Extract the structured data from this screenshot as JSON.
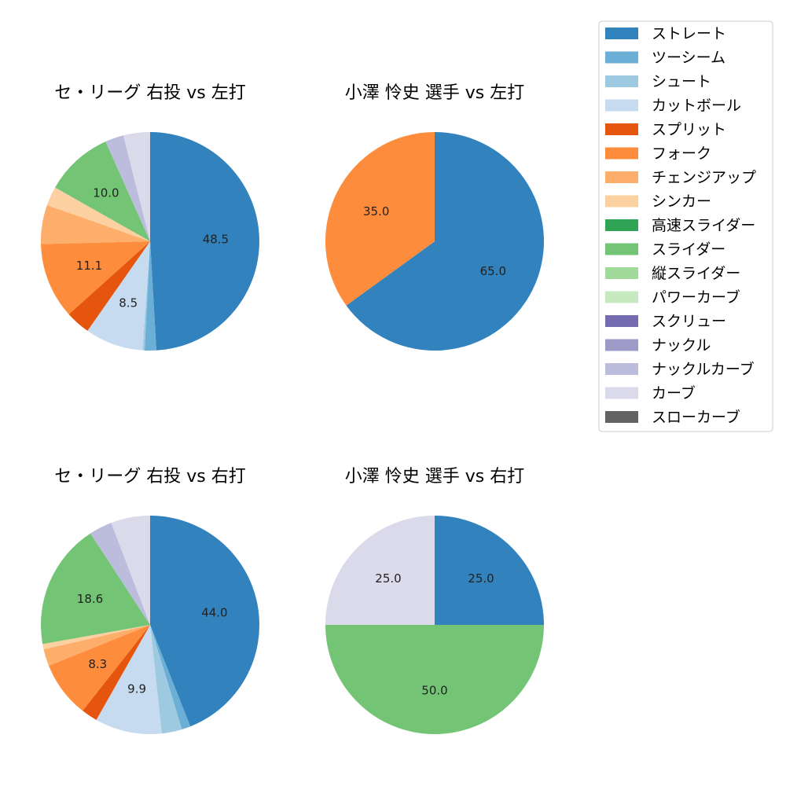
{
  "legend": {
    "items": [
      {
        "label": "ストレート",
        "color": "#3182bd"
      },
      {
        "label": "ツーシーム",
        "color": "#6baed6"
      },
      {
        "label": "シュート",
        "color": "#9ecae1"
      },
      {
        "label": "カットボール",
        "color": "#c6dbef"
      },
      {
        "label": "スプリット",
        "color": "#e6550d"
      },
      {
        "label": "フォーク",
        "color": "#fd8d3c"
      },
      {
        "label": "チェンジアップ",
        "color": "#fdae6b"
      },
      {
        "label": "シンカー",
        "color": "#fdd0a2"
      },
      {
        "label": "高速スライダー",
        "color": "#31a354"
      },
      {
        "label": "スライダー",
        "color": "#74c476"
      },
      {
        "label": "縦スライダー",
        "color": "#a1d99b"
      },
      {
        "label": "パワーカーブ",
        "color": "#c7e9c0"
      },
      {
        "label": "スクリュー",
        "color": "#756bb1"
      },
      {
        "label": "ナックル",
        "color": "#9e9ac8"
      },
      {
        "label": "ナックルカーブ",
        "color": "#bcbddc"
      },
      {
        "label": "カーブ",
        "color": "#dadaeb"
      },
      {
        "label": "スローカーブ",
        "color": "#636363"
      }
    ]
  },
  "chart_data": [
    {
      "type": "pie",
      "title": "セ・リーグ 右投 vs 左打",
      "slices": [
        {
          "label": "ストレート",
          "value": 48.5,
          "shown": "48.5"
        },
        {
          "label": "ツーシーム",
          "value": 1.7
        },
        {
          "label": "シュート",
          "value": 0.3
        },
        {
          "label": "カットボール",
          "value": 8.5,
          "shown": "8.5"
        },
        {
          "label": "スプリット",
          "value": 3.6
        },
        {
          "label": "フォーク",
          "value": 11.1,
          "shown": "11.1"
        },
        {
          "label": "チェンジアップ",
          "value": 5.7
        },
        {
          "label": "シンカー",
          "value": 2.8
        },
        {
          "label": "スライダー",
          "value": 10.0,
          "shown": "10.0"
        },
        {
          "label": "ナックルカーブ",
          "value": 2.7
        },
        {
          "label": "カーブ",
          "value": 3.9
        }
      ]
    },
    {
      "type": "pie",
      "title": "小澤 怜史 選手 vs 左打",
      "slices": [
        {
          "label": "ストレート",
          "value": 65.0,
          "shown": "65.0"
        },
        {
          "label": "フォーク",
          "value": 35.0,
          "shown": "35.0"
        }
      ]
    },
    {
      "type": "pie",
      "title": "セ・リーグ 右投 vs 右打",
      "slices": [
        {
          "label": "ストレート",
          "value": 44.0,
          "shown": "44.0"
        },
        {
          "label": "ツーシーム",
          "value": 1.3
        },
        {
          "label": "シュート",
          "value": 3.0
        },
        {
          "label": "カットボール",
          "value": 9.9,
          "shown": "9.9"
        },
        {
          "label": "スプリット",
          "value": 2.4
        },
        {
          "label": "フォーク",
          "value": 8.3,
          "shown": "8.3"
        },
        {
          "label": "チェンジアップ",
          "value": 2.5
        },
        {
          "label": "シンカー",
          "value": 0.8
        },
        {
          "label": "スライダー",
          "value": 18.6,
          "shown": "18.6"
        },
        {
          "label": "ナックルカーブ",
          "value": 3.4
        },
        {
          "label": "カーブ",
          "value": 5.8
        }
      ]
    },
    {
      "type": "pie",
      "title": "小澤 怜史 選手 vs 右打",
      "slices": [
        {
          "label": "ストレート",
          "value": 25.0,
          "shown": "25.0"
        },
        {
          "label": "スライダー",
          "value": 50.0,
          "shown": "50.0"
        },
        {
          "label": "カーブ",
          "value": 25.0,
          "shown": "25.0"
        }
      ]
    }
  ]
}
